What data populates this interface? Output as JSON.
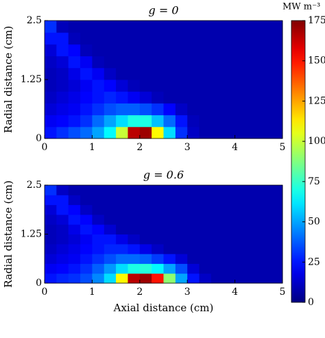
{
  "chart_data": [
    {
      "type": "heatmap",
      "title": "g = 0",
      "ylabel": "Radial distance (cm)",
      "xlim": [
        0,
        5
      ],
      "ylim": [
        0,
        2.5
      ],
      "xticks": [
        0,
        1,
        2,
        3,
        4,
        5
      ],
      "yticks": [
        0,
        1.25,
        2.5
      ],
      "colorscale": "jet",
      "colorbar": {
        "label": "MW m⁻³",
        "lim": [
          0,
          175
        ],
        "ticks": [
          0,
          25,
          50,
          75,
          100,
          125,
          150,
          175
        ]
      },
      "values": [
        [
          25,
          30,
          35,
          40,
          50,
          65,
          100,
          165,
          170,
          110,
          60,
          30,
          12,
          8,
          8,
          8,
          8,
          8,
          8,
          8
        ],
        [
          20,
          22,
          25,
          30,
          40,
          50,
          60,
          70,
          70,
          55,
          40,
          25,
          10,
          8,
          8,
          8,
          8,
          8,
          8,
          8
        ],
        [
          15,
          18,
          20,
          25,
          30,
          35,
          38,
          38,
          35,
          30,
          22,
          12,
          8,
          8,
          8,
          8,
          8,
          8,
          8,
          8
        ],
        [
          12,
          15,
          18,
          22,
          25,
          28,
          25,
          20,
          15,
          10,
          8,
          8,
          8,
          8,
          8,
          8,
          8,
          8,
          8,
          8
        ],
        [
          10,
          12,
          15,
          20,
          25,
          22,
          15,
          10,
          8,
          8,
          8,
          8,
          8,
          8,
          8,
          8,
          8,
          8,
          8,
          8
        ],
        [
          10,
          12,
          18,
          25,
          20,
          12,
          8,
          8,
          8,
          8,
          8,
          8,
          8,
          8,
          8,
          8,
          8,
          8,
          8,
          8
        ],
        [
          12,
          15,
          25,
          20,
          10,
          8,
          8,
          8,
          8,
          8,
          8,
          8,
          8,
          8,
          8,
          8,
          8,
          8,
          8,
          8
        ],
        [
          15,
          25,
          22,
          10,
          8,
          8,
          8,
          8,
          8,
          8,
          8,
          8,
          8,
          8,
          8,
          8,
          8,
          8,
          8,
          8
        ],
        [
          25,
          25,
          10,
          8,
          8,
          8,
          8,
          8,
          8,
          8,
          8,
          8,
          8,
          8,
          8,
          8,
          8,
          8,
          8,
          8
        ],
        [
          30,
          10,
          8,
          8,
          8,
          8,
          8,
          8,
          8,
          8,
          8,
          8,
          8,
          8,
          8,
          8,
          8,
          8,
          8,
          8
        ]
      ]
    },
    {
      "type": "heatmap",
      "title": "g = 0.6",
      "ylabel": "Radial distance (cm)",
      "xlabel": "Axial distance (cm)",
      "xlim": [
        0,
        5
      ],
      "ylim": [
        0,
        2.5
      ],
      "xticks": [
        0,
        1,
        2,
        3,
        4,
        5
      ],
      "yticks": [
        0,
        1.25,
        2.5
      ],
      "colorscale": "jet",
      "values": [
        [
          25,
          28,
          30,
          35,
          45,
          60,
          110,
          165,
          170,
          150,
          90,
          50,
          25,
          12,
          8,
          8,
          8,
          8,
          8,
          8
        ],
        [
          20,
          22,
          25,
          30,
          38,
          48,
          60,
          70,
          72,
          65,
          50,
          35,
          15,
          8,
          8,
          8,
          8,
          8,
          8,
          8
        ],
        [
          15,
          18,
          20,
          25,
          30,
          35,
          40,
          40,
          38,
          32,
          25,
          15,
          8,
          8,
          8,
          8,
          8,
          8,
          8,
          8
        ],
        [
          12,
          15,
          18,
          22,
          25,
          28,
          28,
          25,
          18,
          12,
          8,
          8,
          8,
          8,
          8,
          8,
          8,
          8,
          8,
          8
        ],
        [
          10,
          12,
          15,
          20,
          25,
          25,
          18,
          12,
          8,
          8,
          8,
          8,
          8,
          8,
          8,
          8,
          8,
          8,
          8,
          8
        ],
        [
          10,
          12,
          18,
          25,
          22,
          14,
          8,
          8,
          8,
          8,
          8,
          8,
          8,
          8,
          8,
          8,
          8,
          8,
          8,
          8
        ],
        [
          12,
          15,
          25,
          22,
          12,
          8,
          8,
          8,
          8,
          8,
          8,
          8,
          8,
          8,
          8,
          8,
          8,
          8,
          8,
          8
        ],
        [
          15,
          25,
          22,
          12,
          8,
          8,
          8,
          8,
          8,
          8,
          8,
          8,
          8,
          8,
          8,
          8,
          8,
          8,
          8,
          8
        ],
        [
          25,
          25,
          12,
          8,
          8,
          8,
          8,
          8,
          8,
          8,
          8,
          8,
          8,
          8,
          8,
          8,
          8,
          8,
          8,
          8
        ],
        [
          30,
          12,
          8,
          8,
          8,
          8,
          8,
          8,
          8,
          8,
          8,
          8,
          8,
          8,
          8,
          8,
          8,
          8,
          8,
          8
        ]
      ]
    }
  ]
}
